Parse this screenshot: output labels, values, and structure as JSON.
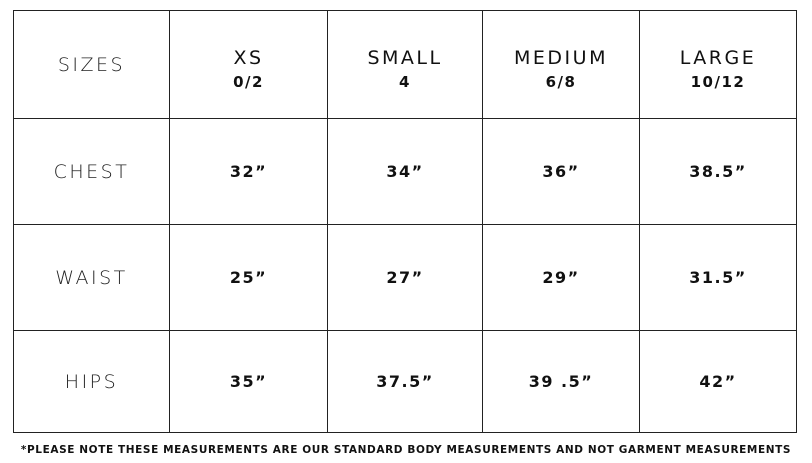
{
  "header": {
    "label": "SIZES",
    "sizes": [
      {
        "name": "XS",
        "numeric": "0/2"
      },
      {
        "name": "SMALL",
        "numeric": "4"
      },
      {
        "name": "MEDIUM",
        "numeric": "6/8"
      },
      {
        "name": "LARGE",
        "numeric": "10/12"
      }
    ]
  },
  "rows": [
    {
      "label": "CHEST",
      "values": [
        "32”",
        "34”",
        "36”",
        "38.5”"
      ]
    },
    {
      "label": "WAIST",
      "values": [
        "25”",
        "27”",
        "29”",
        "31.5”"
      ]
    },
    {
      "label": "HIPS",
      "values": [
        "35”",
        "37.5”",
        "39 .5”",
        "42”"
      ]
    }
  ],
  "footnote": "*PLEASE NOTE THESE MEASUREMENTS ARE OUR STANDARD BODY MEASUREMENTS AND NOT GARMENT MEASUREMENTS"
}
